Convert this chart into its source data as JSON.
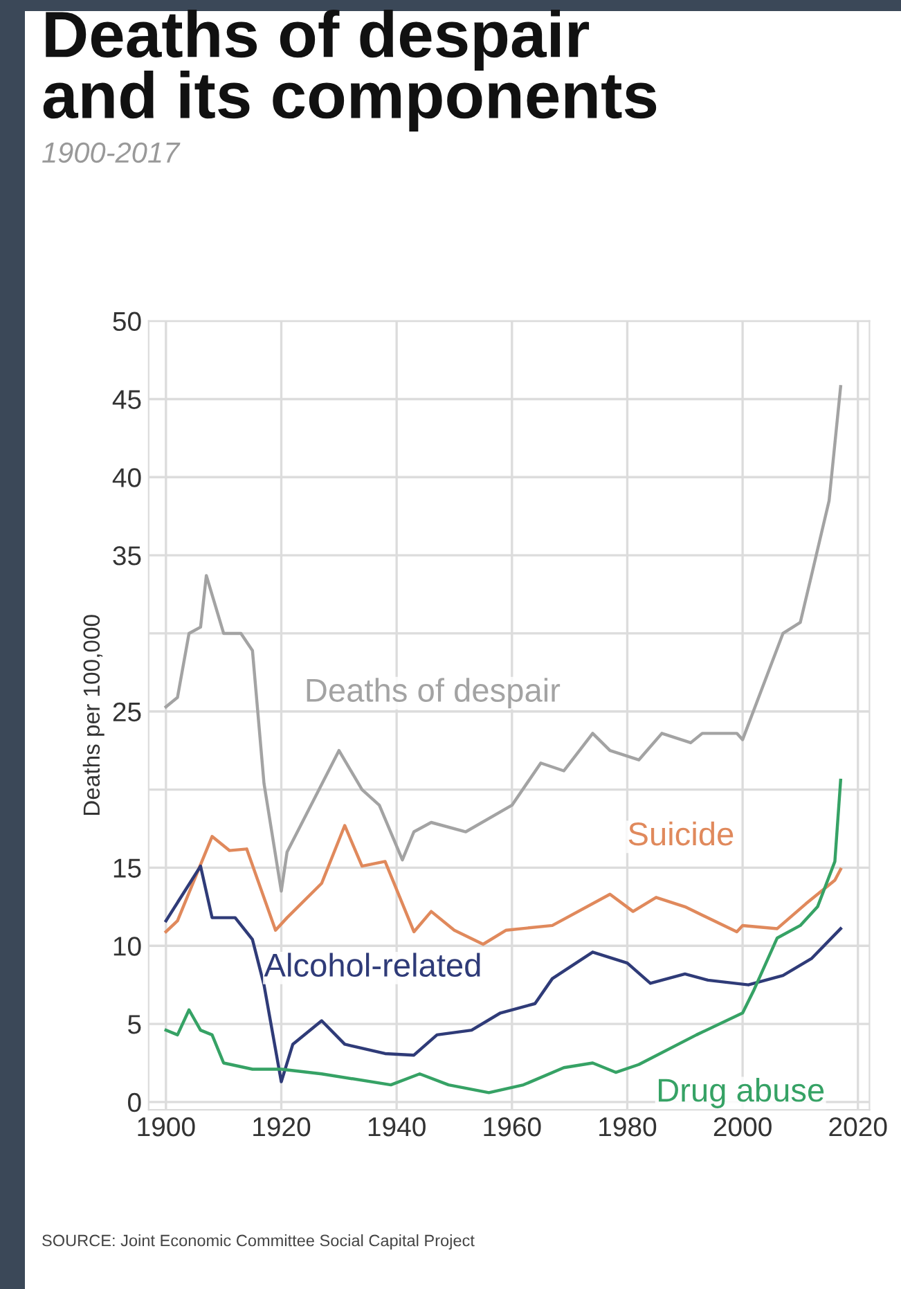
{
  "chart_data": {
    "type": "line",
    "title": "Deaths of despair\nand its components",
    "subtitle": "1900-2017",
    "ylabel": "Deaths per 100,000",
    "xlim": [
      1897,
      2022
    ],
    "xticks": [
      1900,
      1920,
      1940,
      1960,
      1980,
      2000,
      2020
    ],
    "ylim": [
      -0.5,
      50
    ],
    "yticks": [
      0,
      5,
      10,
      15,
      {
        "value": 20,
        "label": null
      },
      25,
      {
        "value": 30,
        "label": null
      },
      35,
      40,
      45,
      50
    ],
    "grid": true,
    "legend": false,
    "marker": "none",
    "line_style": "solid",
    "series": [
      {
        "name": "Deaths of despair",
        "color": "#a3a3a3",
        "x": [
          1900,
          1902,
          1904,
          1906,
          1907,
          1910,
          1913,
          1915,
          1917,
          1920,
          1921,
          1930,
          1934,
          1937,
          1941,
          1943,
          1946,
          1952,
          1960,
          1965,
          1969,
          1974,
          1977,
          1982,
          1986,
          1991,
          1993,
          1999,
          2000,
          2007,
          2010,
          2012,
          2015,
          2017
        ],
        "values": [
          25.3,
          25.9,
          30,
          30.4,
          33.7,
          30,
          30,
          28.9,
          20.4,
          13.5,
          16,
          22.5,
          20,
          19,
          15.5,
          17.3,
          17.9,
          17.3,
          19,
          21.7,
          21.2,
          23.6,
          22.5,
          21.9,
          23.6,
          23,
          23.6,
          23.6,
          23.2,
          30,
          30.7,
          33.8,
          38.5,
          45.8
        ]
      },
      {
        "name": "Suicide",
        "color": "#e0895c",
        "x": [
          1900,
          1902,
          1908,
          1911,
          1914,
          1919,
          1921,
          1927,
          1931,
          1934,
          1938,
          1943,
          1946,
          1950,
          1955,
          1959,
          1967,
          1977,
          1981,
          1985,
          1990,
          1999,
          2000,
          2006,
          2011,
          2016,
          2017
        ],
        "values": [
          10.9,
          11.6,
          17.0,
          16.1,
          16.2,
          11,
          11.8,
          14,
          17.7,
          15.1,
          15.4,
          10.9,
          12.2,
          11,
          10.1,
          11,
          11.3,
          13.3,
          12.2,
          13.1,
          12.5,
          10.9,
          11.3,
          11.1,
          12.7,
          14.2,
          14.9
        ]
      },
      {
        "name": "Alcohol-related",
        "color": "#2f3b78",
        "x": [
          1900,
          1906,
          1908,
          1912,
          1915,
          1917,
          1920,
          1922,
          1927,
          1931,
          1938,
          1943,
          1947,
          1953,
          1958,
          1964,
          1967,
          1974,
          1980,
          1984,
          1990,
          1994,
          2001,
          2007,
          2012,
          2017
        ],
        "values": [
          11.6,
          15.1,
          11.8,
          11.8,
          10.4,
          7.5,
          1.3,
          3.7,
          5.2,
          3.7,
          3.1,
          3.0,
          4.3,
          4.6,
          5.7,
          6.3,
          7.9,
          9.6,
          8.9,
          7.6,
          8.2,
          7.8,
          7.5,
          8.1,
          9.2,
          11.1
        ]
      },
      {
        "name": "Drug abuse",
        "color": "#36a265",
        "x": [
          1900,
          1902,
          1904,
          1906,
          1908,
          1910,
          1915,
          1920,
          1927,
          1939,
          1944,
          1949,
          1956,
          1962,
          1969,
          1974,
          1978,
          1982,
          1992,
          2000,
          2002,
          2006,
          2010,
          2013,
          2016,
          2017
        ],
        "values": [
          4.6,
          4.3,
          5.9,
          4.6,
          4.3,
          2.5,
          2.1,
          2.1,
          1.8,
          1.1,
          1.8,
          1.1,
          0.6,
          1.1,
          2.2,
          2.5,
          1.9,
          2.4,
          4.3,
          5.7,
          7.2,
          10.5,
          11.3,
          12.5,
          15.4,
          20.6
        ]
      }
    ],
    "annotations": [
      "SOURCE: Joint Economic Committee Social Capital Project"
    ]
  }
}
